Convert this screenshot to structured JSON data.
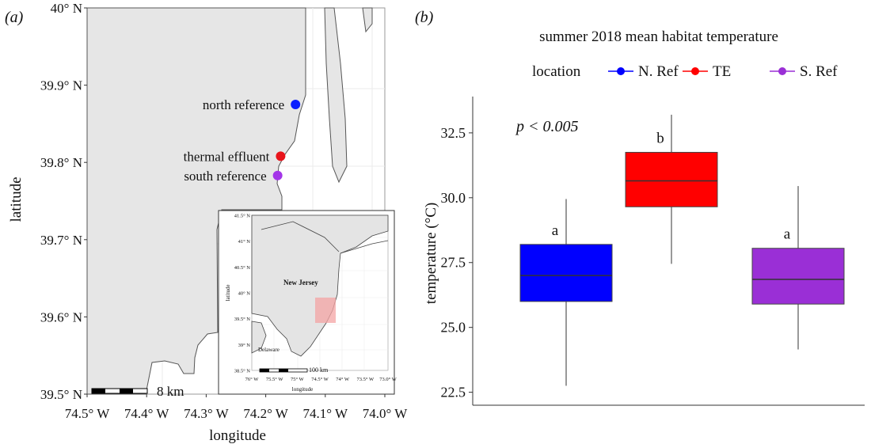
{
  "panel_a": {
    "label": "(a)",
    "map": {
      "type": "map",
      "xlabel": "longitude",
      "ylabel": "latitude",
      "x_ticks": [
        {
          "value": -74.5,
          "label": "74.5° W"
        },
        {
          "value": -74.4,
          "label": "74.4° W"
        },
        {
          "value": -74.3,
          "label": "74.3° W"
        },
        {
          "value": -74.2,
          "label": "74.2° W"
        },
        {
          "value": -74.1,
          "label": "74.1° W"
        },
        {
          "value": -74.0,
          "label": "74.0° W"
        }
      ],
      "y_ticks": [
        {
          "value": 39.5,
          "label": "39.5° N"
        },
        {
          "value": 39.6,
          "label": "39.6° N"
        },
        {
          "value": 39.7,
          "label": "39.7° N"
        },
        {
          "value": 39.8,
          "label": "39.8° N"
        },
        {
          "value": 39.9,
          "label": "39.9° N"
        },
        {
          "value": 40.0,
          "label": "40° N"
        }
      ],
      "xlim": [
        -74.5,
        -74.0
      ],
      "ylim": [
        39.5,
        40.0
      ],
      "scale_bar_label": "8 km",
      "sites": [
        {
          "name": "north reference",
          "lon": -74.15,
          "lat": 39.875,
          "color": "#0a1eff"
        },
        {
          "name": "thermal effluent",
          "lon": -74.175,
          "lat": 39.808,
          "color": "#e8141b"
        },
        {
          "name": "south reference",
          "lon": -74.18,
          "lat": 39.783,
          "color": "#a335e8"
        }
      ]
    },
    "inset": {
      "title": "New Jersey",
      "other_label": "Delaware",
      "xlabel": "longitude",
      "ylabel": "latitude",
      "x_ticks": [
        "76° W",
        "75.5° W",
        "75° W",
        "74.5° W",
        "74° W",
        "73.5° W",
        "73.0° W"
      ],
      "y_ticks": [
        "38.5° N",
        "39° N",
        "39.5° N",
        "40° N",
        "40.5° N",
        "41° N",
        "41.5° N"
      ],
      "scale_bar_label": "100 km",
      "study_area_color": "#f4a4a4"
    }
  },
  "panel_b": {
    "label": "(b)",
    "annotation": "p < 0.005",
    "chart_data": {
      "type": "box",
      "title": "summer 2018 mean habitat temperature",
      "legend_title": "location",
      "legend_position": "top",
      "xlabel": "",
      "ylabel": "temperature (°C)",
      "ylim": [
        22.0,
        33.9
      ],
      "y_ticks": [
        22.5,
        25.0,
        27.5,
        30.0,
        32.5
      ],
      "grid": false,
      "series": [
        {
          "name": "N. Ref",
          "color": "#0000ff",
          "min": 22.75,
          "q1": 26.0,
          "median": 27.0,
          "q3": 28.2,
          "max": 29.95,
          "group_letter": "a"
        },
        {
          "name": "TE",
          "color": "#ff0000",
          "min": 27.45,
          "q1": 29.65,
          "median": 30.65,
          "q3": 31.75,
          "max": 33.2,
          "group_letter": "b"
        },
        {
          "name": "S. Ref",
          "color": "#9a2fd6",
          "min": 24.15,
          "q1": 25.9,
          "median": 26.85,
          "q3": 28.05,
          "max": 30.45,
          "group_letter": "a"
        }
      ]
    }
  }
}
